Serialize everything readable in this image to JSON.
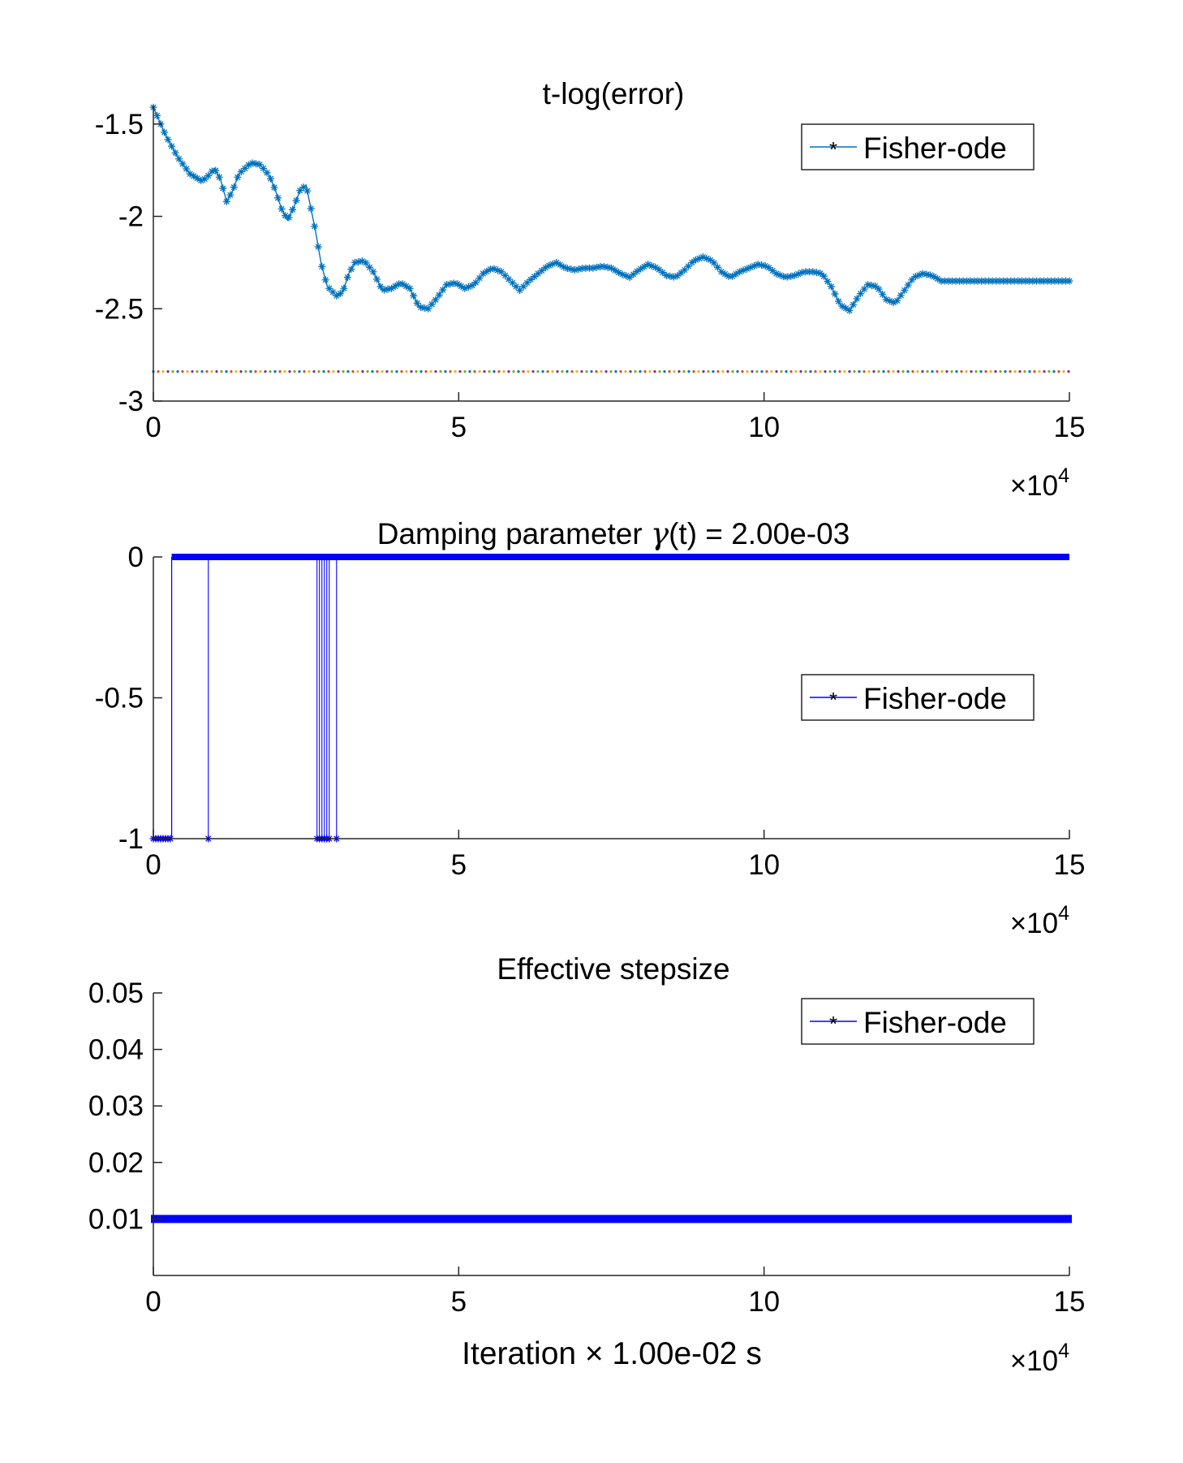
{
  "chart_data": [
    {
      "type": "line",
      "title": "t-log(error)",
      "xlabel": "",
      "ylabel": "",
      "xlim": [
        0,
        150000
      ],
      "ylim": [
        -3,
        -1.4
      ],
      "x_tick_values": [
        0,
        50000,
        100000,
        150000
      ],
      "x_tick_labels": [
        "0",
        "5",
        "10",
        "15"
      ],
      "x_exponent_label": "×10",
      "x_exponent_power": "4",
      "y_tick_values": [
        -3,
        -2.5,
        -2,
        -1.5
      ],
      "y_tick_labels": [
        "-3",
        "-2.5",
        "-2",
        "-1.5"
      ],
      "grid": false,
      "legend_position": "top-right",
      "series": [
        {
          "name": "Fisher-ode",
          "color": "#0072BD",
          "marker": "asterisk",
          "x": [
            0,
            2000,
            4000,
            6000,
            8000,
            9000,
            10000,
            11000,
            12000,
            13000,
            14000,
            16000,
            17500,
            19000,
            20000,
            21000,
            22000,
            23000,
            24000,
            25000,
            26500,
            27500,
            28500,
            30000,
            31000,
            32000,
            33000,
            34500,
            36000,
            37500,
            39000,
            40500,
            42000,
            43500,
            45000,
            46500,
            48000,
            49500,
            51000,
            52500,
            54000,
            55500,
            57000,
            58500,
            60000,
            61500,
            63000,
            64500,
            66000,
            67500,
            69000,
            70500,
            72000,
            73500,
            75000,
            76500,
            78000,
            79500,
            81000,
            82500,
            84000,
            85500,
            87000,
            88500,
            90000,
            91500,
            93000,
            94500,
            96000,
            97500,
            99000,
            100500,
            102000,
            103500,
            105000,
            106500,
            108000,
            109500,
            111000,
            112500,
            114000,
            115500,
            117000,
            118500,
            120000,
            121500,
            123000,
            124500,
            126000,
            127500,
            129000,
            130500,
            132000,
            133500,
            135000,
            136500,
            138000,
            139500,
            141000,
            142500,
            144000,
            145500,
            147000,
            148500,
            150000
          ],
          "y": [
            -1.41,
            -1.56,
            -1.68,
            -1.77,
            -1.81,
            -1.78,
            -1.74,
            -1.8,
            -1.92,
            -1.86,
            -1.77,
            -1.71,
            -1.72,
            -1.78,
            -1.86,
            -1.96,
            -2.02,
            -1.95,
            -1.86,
            -1.83,
            -2.07,
            -2.26,
            -2.38,
            -2.43,
            -2.41,
            -2.31,
            -2.25,
            -2.24,
            -2.3,
            -2.4,
            -2.39,
            -2.36,
            -2.39,
            -2.49,
            -2.5,
            -2.44,
            -2.37,
            -2.36,
            -2.39,
            -2.37,
            -2.31,
            -2.28,
            -2.3,
            -2.35,
            -2.4,
            -2.35,
            -2.31,
            -2.27,
            -2.25,
            -2.28,
            -2.29,
            -2.28,
            -2.28,
            -2.27,
            -2.28,
            -2.31,
            -2.33,
            -2.29,
            -2.26,
            -2.28,
            -2.32,
            -2.33,
            -2.29,
            -2.24,
            -2.22,
            -2.24,
            -2.3,
            -2.33,
            -2.3,
            -2.28,
            -2.26,
            -2.27,
            -2.31,
            -2.33,
            -2.32,
            -2.3,
            -2.3,
            -2.31,
            -2.38,
            -2.48,
            -2.51,
            -2.43,
            -2.37,
            -2.38,
            -2.45,
            -2.47,
            -2.4,
            -2.33,
            -2.31,
            -2.32,
            -2.35,
            -2.35,
            -2.35,
            -2.35,
            -2.35,
            -2.35,
            -2.35,
            -2.35,
            -2.35,
            -2.35,
            -2.35,
            -2.35,
            -2.35,
            -2.35,
            -2.35
          ]
        },
        {
          "name": "",
          "color": "#D95319",
          "marker": "dot",
          "x": [
            0,
            150000
          ],
          "y": [
            -2.84,
            -2.84
          ]
        }
      ]
    },
    {
      "type": "line",
      "title_prefix": "Damping parameter ",
      "title_symbol": "γ",
      "title_suffix": "(t) = 2.00e-03",
      "xlabel": "",
      "ylabel": "",
      "xlim": [
        0,
        150000
      ],
      "ylim": [
        -1,
        0
      ],
      "x_tick_values": [
        0,
        50000,
        100000,
        150000
      ],
      "x_tick_labels": [
        "0",
        "5",
        "10",
        "15"
      ],
      "x_exponent_label": "×10",
      "x_exponent_power": "4",
      "y_tick_values": [
        -1,
        -0.5,
        0
      ],
      "y_tick_labels": [
        "-1",
        "-0.5",
        "0"
      ],
      "grid": false,
      "legend_position": "right",
      "series": [
        {
          "name": "Fisher-ode",
          "color": "#0000FF",
          "marker": "asterisk",
          "baseline": 0,
          "drops_to": -1,
          "drop_ranges": [
            [
              0,
              3000
            ]
          ],
          "drop_points": [
            9000,
            26800,
            27200,
            27600,
            28000,
            28400,
            28800,
            30000
          ],
          "x_range": [
            0,
            150000
          ]
        }
      ]
    },
    {
      "type": "line",
      "title": "Effective stepsize",
      "xlabel_prefix": "Iteration ",
      "xlabel_symbol": "×",
      "xlabel_suffix": " 1.00e-02 s",
      "ylabel": "",
      "xlim": [
        0,
        150000
      ],
      "ylim": [
        0.0,
        0.05
      ],
      "x_tick_values": [
        0,
        50000,
        100000,
        150000
      ],
      "x_tick_labels": [
        "0",
        "5",
        "10",
        "15"
      ],
      "x_exponent_label": "×10",
      "x_exponent_power": "4",
      "y_tick_values": [
        0.01,
        0.02,
        0.03,
        0.04,
        0.05
      ],
      "y_tick_labels": [
        "0.01",
        "0.02",
        "0.03",
        "0.04",
        "0.05"
      ],
      "grid": false,
      "legend_position": "top-right",
      "series": [
        {
          "name": "Fisher-ode",
          "color": "#0000FF",
          "marker": "asterisk",
          "x": [
            0,
            150000
          ],
          "y": [
            0.01,
            0.01
          ]
        }
      ]
    }
  ]
}
